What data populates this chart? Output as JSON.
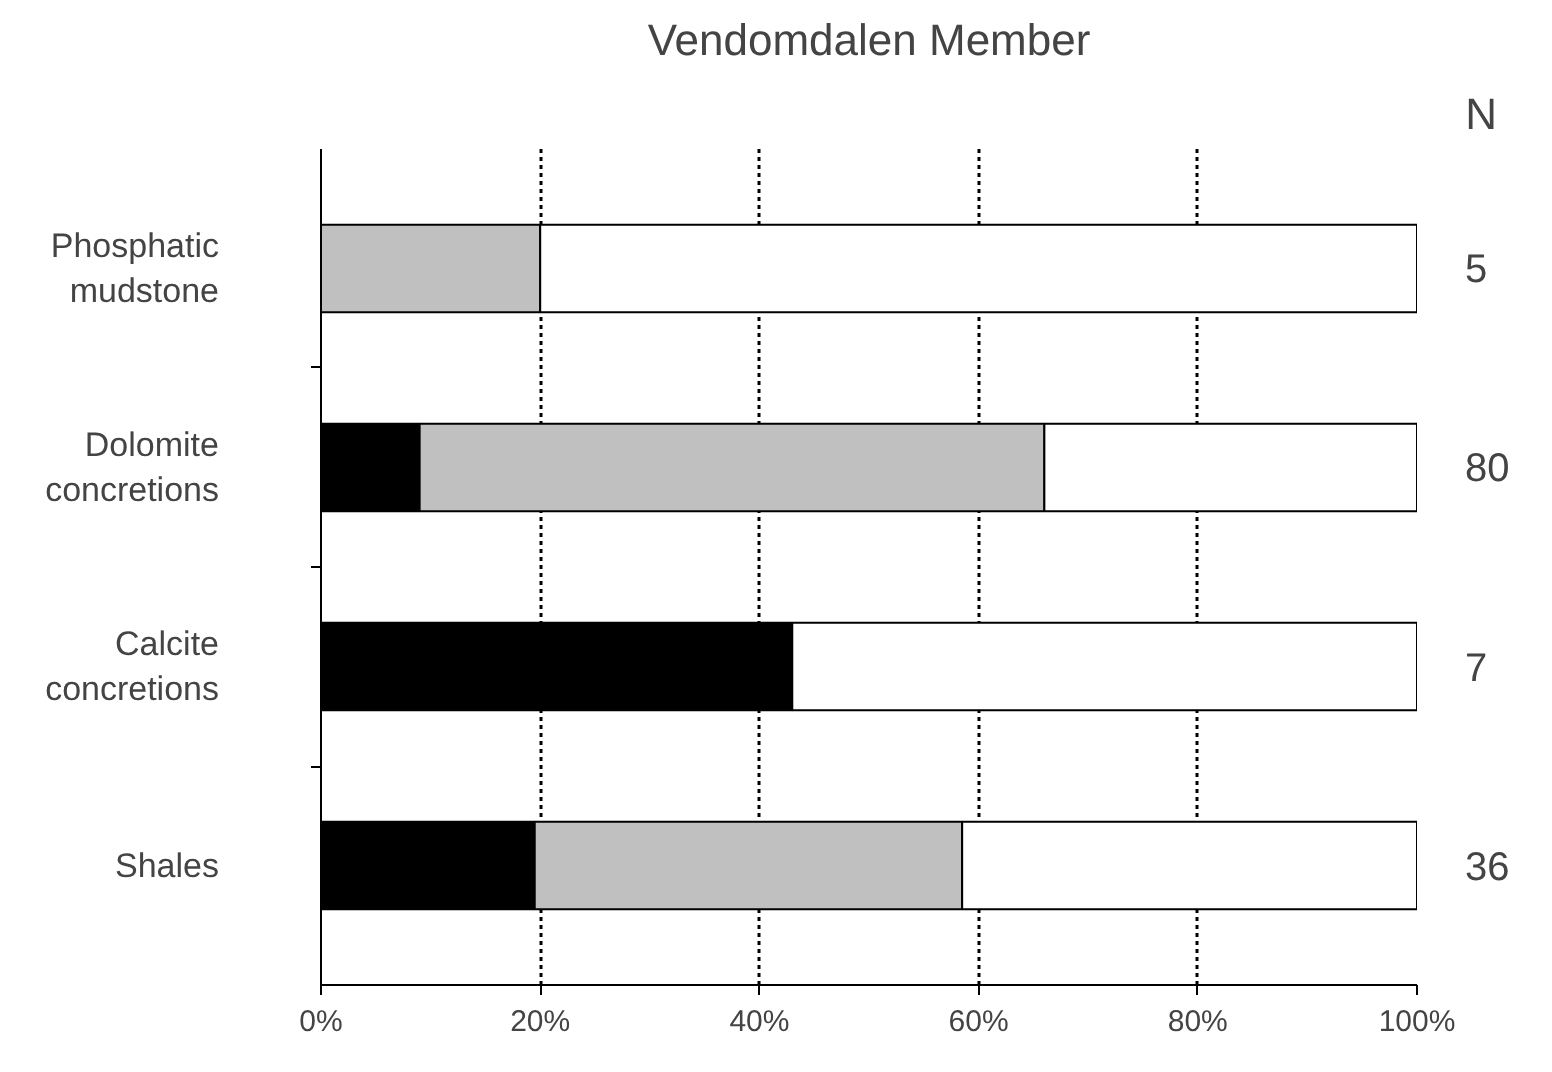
{
  "chart_data": {
    "type": "bar",
    "orientation": "horizontal",
    "stacked": true,
    "title": "Vendomdalen Member",
    "categories": [
      "Phosphatic\nmudstone",
      "Dolomite\nconcretions",
      "Calcite\nconcretions",
      "Shales"
    ],
    "series": [
      {
        "color": "#000000",
        "values": [
          0,
          9,
          43,
          19.5
        ]
      },
      {
        "color": "#c0c0c0",
        "values": [
          20,
          57,
          0,
          39
        ]
      },
      {
        "color": "#ffffff",
        "values": [
          80,
          34,
          57,
          41.5
        ]
      }
    ],
    "xlim": [
      0,
      100
    ],
    "xticks": [
      {
        "value": 0,
        "label": "0%"
      },
      {
        "value": 20,
        "label": "20%"
      },
      {
        "value": 40,
        "label": "40%"
      },
      {
        "value": 60,
        "label": "60%"
      },
      {
        "value": 80,
        "label": "80%"
      },
      {
        "value": 100,
        "label": "100%"
      }
    ],
    "grid": "x",
    "line_style": "dotted",
    "annotations": [
      "N",
      "5",
      "80",
      "7",
      "36"
    ]
  }
}
